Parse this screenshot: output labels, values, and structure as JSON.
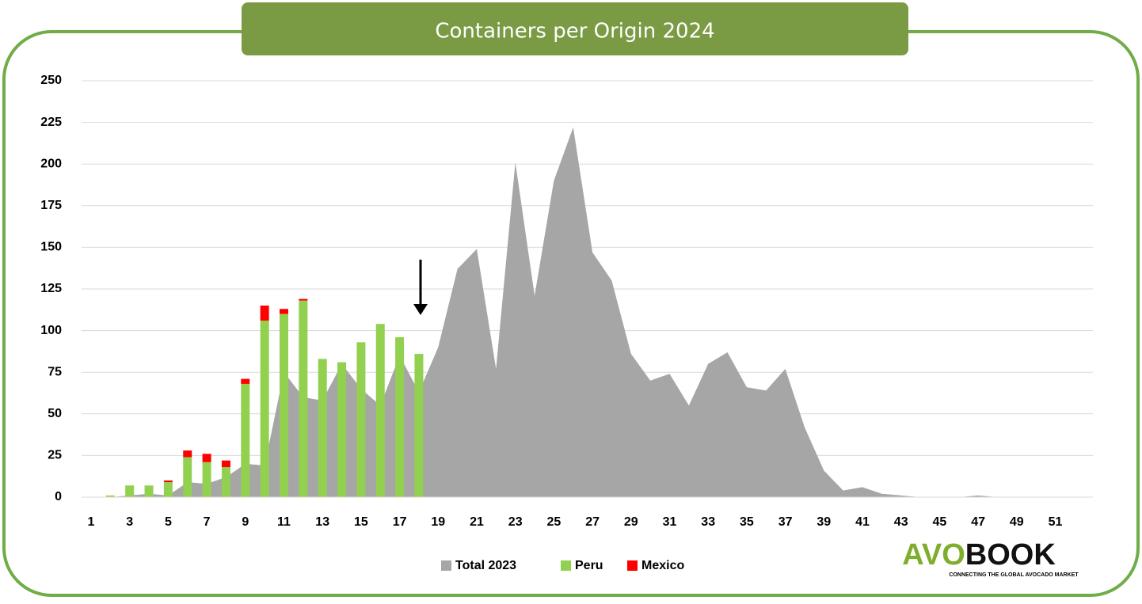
{
  "chart_data": {
    "type": "bar-area",
    "title": "Containers per Origin 2024",
    "categories": [
      1,
      null,
      3,
      null,
      5,
      null,
      7,
      null,
      9,
      null,
      11,
      null,
      13,
      null,
      15,
      null,
      17,
      null,
      19,
      null,
      21,
      null,
      23,
      null,
      25,
      null,
      27,
      null,
      29,
      null,
      31,
      null,
      33,
      null,
      35,
      null,
      37,
      null,
      39,
      null,
      41,
      null,
      43,
      null,
      45,
      null,
      47,
      null,
      49,
      null,
      51,
      null
    ],
    "series": [
      {
        "name": "Total 2023",
        "color": "#a6a6a6",
        "kind": "area",
        "values": [
          0,
          0,
          1,
          2,
          1,
          9,
          8,
          12,
          20,
          19,
          75,
          60,
          58,
          80,
          65,
          55,
          85,
          63,
          90,
          137,
          149,
          77,
          201,
          121,
          190,
          222,
          147,
          130,
          86,
          70,
          74,
          55,
          80,
          87,
          66,
          64,
          77,
          42,
          16,
          4,
          6,
          2,
          1,
          0,
          0,
          0,
          1,
          0,
          0,
          0,
          0,
          0
        ]
      },
      {
        "name": "Peru",
        "color": "#92d050",
        "kind": "bar",
        "values": [
          0,
          1,
          7,
          7,
          9,
          24,
          21,
          18,
          68,
          106,
          110,
          118,
          83,
          81,
          93,
          104,
          96,
          86,
          null,
          null,
          null,
          null,
          null,
          null,
          null,
          null,
          null,
          null,
          null,
          null,
          null,
          null,
          null,
          null,
          null,
          null,
          null,
          null,
          null,
          null,
          null,
          null,
          null,
          null,
          null,
          null,
          null,
          null,
          null,
          null,
          null,
          null
        ]
      },
      {
        "name": "Mexico",
        "color": "#ff0000",
        "kind": "bar",
        "values": [
          0,
          0,
          0,
          0,
          1,
          4,
          5,
          4,
          3,
          9,
          3,
          1,
          0,
          0,
          0,
          0,
          0,
          0,
          null,
          null,
          null,
          null,
          null,
          null,
          null,
          null,
          null,
          null,
          null,
          null,
          null,
          null,
          null,
          null,
          null,
          null,
          null,
          null,
          null,
          null,
          null,
          null,
          null,
          null,
          null,
          null,
          null,
          null,
          null,
          null,
          null,
          null
        ]
      }
    ],
    "ylim": [
      0,
      250
    ],
    "yticks": [
      0,
      25,
      50,
      75,
      100,
      125,
      150,
      175,
      200,
      225,
      250
    ],
    "grid": true,
    "stacked": true
  },
  "logo": {
    "first": "AVO",
    "second": "BOOK",
    "tagline": "CONNECTING THE GLOBAL AVOCADO MARKET"
  }
}
